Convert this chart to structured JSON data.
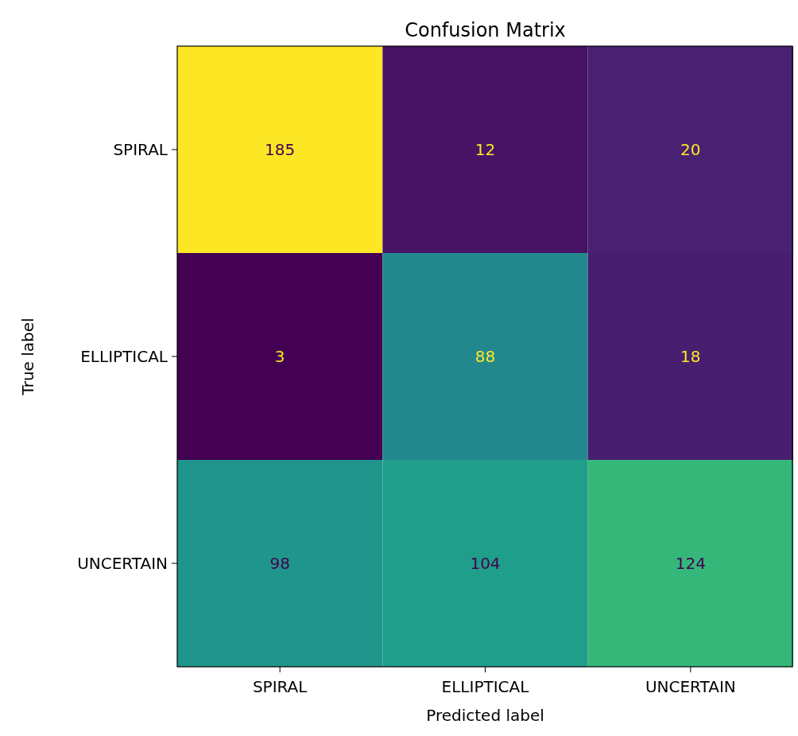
{
  "chart_data": {
    "type": "heatmap",
    "title": "Confusion Matrix",
    "xlabel": "Predicted label",
    "ylabel": "True label",
    "categories": [
      "SPIRAL",
      "ELLIPTICAL",
      "UNCERTAIN"
    ],
    "y_categories": [
      "SPIRAL",
      "ELLIPTICAL",
      "UNCERTAIN"
    ],
    "cells": [
      [
        185,
        12,
        20
      ],
      [
        3,
        88,
        18
      ],
      [
        98,
        104,
        124
      ]
    ],
    "data_labels": true
  }
}
